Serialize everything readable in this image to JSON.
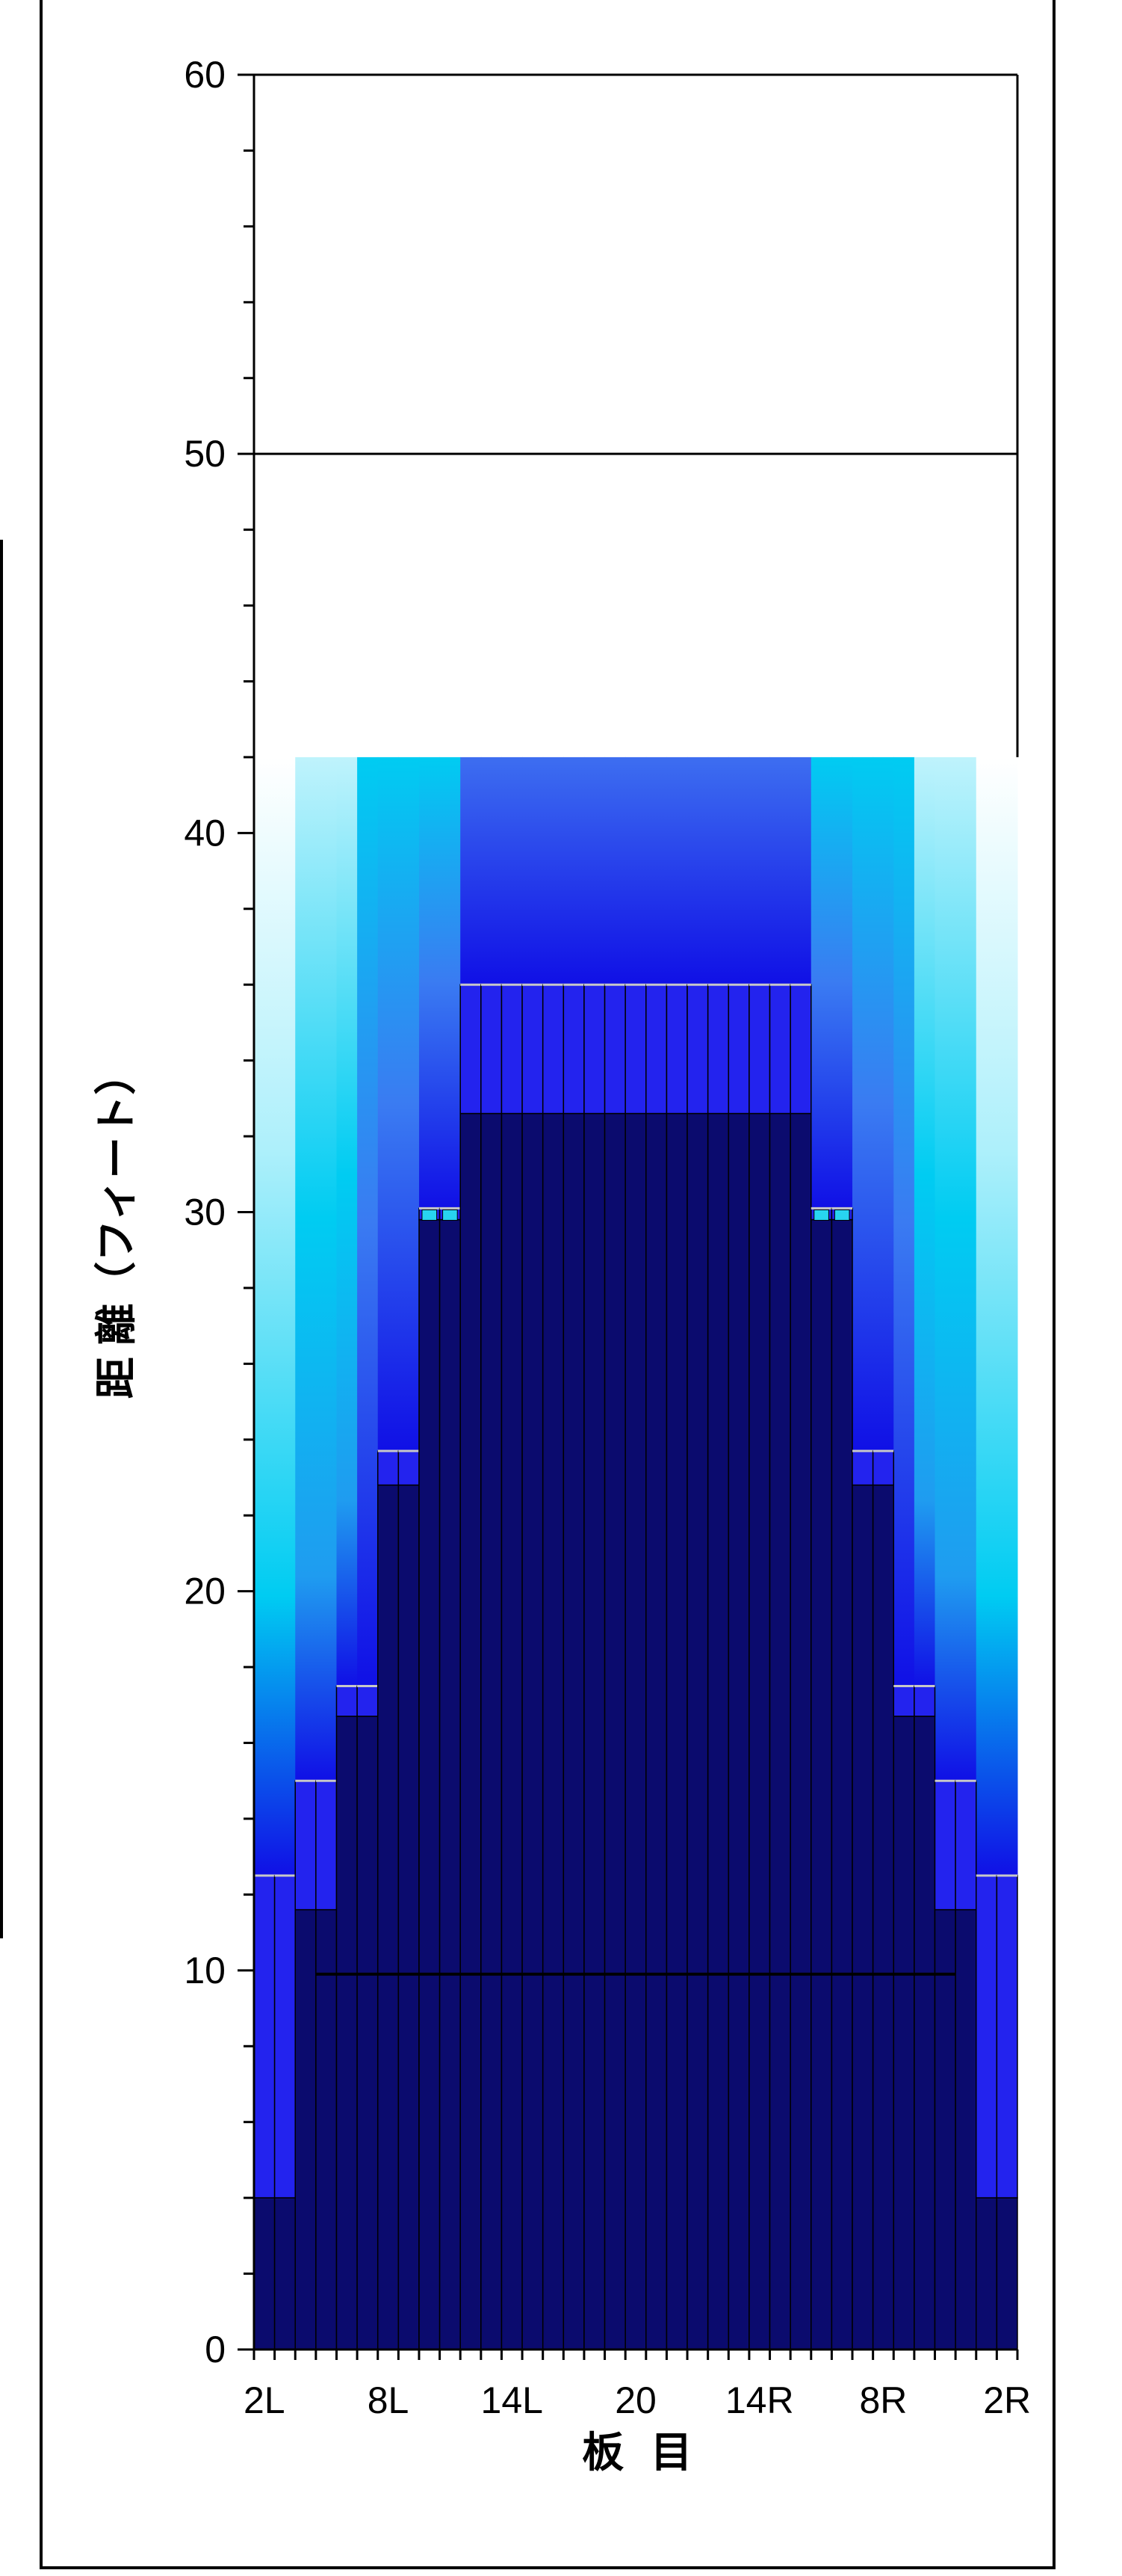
{
  "chart_data": {
    "type": "bar",
    "title": "",
    "xlabel": "板 目",
    "ylabel": "距 離（フィート）",
    "ylim": [
      0,
      60
    ],
    "yticks": [
      0,
      10,
      20,
      30,
      40,
      50,
      60
    ],
    "y_minor_step": 2,
    "x_tick_labels": [
      "2L",
      "8L",
      "14L",
      "20",
      "14R",
      "8R",
      "2R"
    ],
    "x_tick_board_index": [
      0,
      6,
      12,
      18,
      24,
      30,
      36
    ],
    "board_count": 37,
    "grid_lines_y": [
      50
    ],
    "colors": {
      "dark": "#0b0b6e",
      "mid": "#2323ee",
      "gradient_top": "#3d6ef0",
      "gradient_bottom": "#1010e6",
      "cyan": "#00ccf2",
      "light": "#ffffff",
      "marker": "#28d4f0",
      "frame": "#000000"
    },
    "boards": [
      {
        "dark": 4.0,
        "mid": 12.5,
        "glow_top": 42
      },
      {
        "dark": 4.0,
        "mid": 12.5,
        "glow_top": 42
      },
      {
        "dark": 11.6,
        "mid": 15.0,
        "glow_top": 42
      },
      {
        "dark": 11.6,
        "mid": 15.0,
        "glow_top": 42
      },
      {
        "dark": 16.7,
        "mid": 17.5,
        "glow_top": 42
      },
      {
        "dark": 16.7,
        "mid": 17.5,
        "glow_top": 42
      },
      {
        "dark": 22.8,
        "mid": 23.7,
        "glow_top": 42
      },
      {
        "dark": 22.8,
        "mid": 23.7,
        "glow_top": 42
      },
      {
        "dark": 29.8,
        "mid": 30.1,
        "glow_top": 42
      },
      {
        "dark": 29.8,
        "mid": 30.1,
        "glow_top": 42
      },
      {
        "dark": 32.6,
        "mid": 36.0,
        "glow_top": 42
      },
      {
        "dark": 32.6,
        "mid": 36.0,
        "glow_top": 42
      },
      {
        "dark": 32.6,
        "mid": 36.0,
        "glow_top": 42
      },
      {
        "dark": 32.6,
        "mid": 36.0,
        "glow_top": 42
      },
      {
        "dark": 32.6,
        "mid": 36.0,
        "glow_top": 42
      },
      {
        "dark": 32.6,
        "mid": 36.0,
        "glow_top": 42
      },
      {
        "dark": 32.6,
        "mid": 36.0,
        "glow_top": 42
      },
      {
        "dark": 32.6,
        "mid": 36.0,
        "glow_top": 42
      },
      {
        "dark": 32.6,
        "mid": 36.0,
        "glow_top": 42
      },
      {
        "dark": 32.6,
        "mid": 36.0,
        "glow_top": 42
      },
      {
        "dark": 32.6,
        "mid": 36.0,
        "glow_top": 42
      },
      {
        "dark": 32.6,
        "mid": 36.0,
        "glow_top": 42
      },
      {
        "dark": 32.6,
        "mid": 36.0,
        "glow_top": 42
      },
      {
        "dark": 32.6,
        "mid": 36.0,
        "glow_top": 42
      },
      {
        "dark": 32.6,
        "mid": 36.0,
        "glow_top": 42
      },
      {
        "dark": 32.6,
        "mid": 36.0,
        "glow_top": 42
      },
      {
        "dark": 32.6,
        "mid": 36.0,
        "glow_top": 42
      },
      {
        "dark": 29.8,
        "mid": 30.1,
        "glow_top": 42
      },
      {
        "dark": 29.8,
        "mid": 30.1,
        "glow_top": 42
      },
      {
        "dark": 22.8,
        "mid": 23.7,
        "glow_top": 42
      },
      {
        "dark": 22.8,
        "mid": 23.7,
        "glow_top": 42
      },
      {
        "dark": 16.7,
        "mid": 17.5,
        "glow_top": 42
      },
      {
        "dark": 16.7,
        "mid": 17.5,
        "glow_top": 42
      },
      {
        "dark": 11.6,
        "mid": 15.0,
        "glow_top": 42
      },
      {
        "dark": 11.6,
        "mid": 15.0,
        "glow_top": 42
      },
      {
        "dark": 4.0,
        "mid": 12.5,
        "glow_top": 42
      },
      {
        "dark": 4.0,
        "mid": 12.5,
        "glow_top": 42
      }
    ],
    "horizontal_line": {
      "y": 9.9,
      "from_board": 3,
      "to_board": 33
    }
  }
}
